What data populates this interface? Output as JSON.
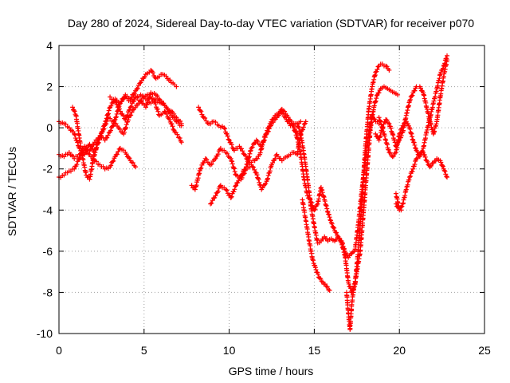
{
  "chart_data": {
    "type": "scatter",
    "title": "Day 280 of 2024, Sidereal Day-to-day VTEC variation (SDTVAR) for receiver p070",
    "xlabel": "GPS time / hours",
    "ylabel": "SDTVAR / TECUs",
    "xlim": [
      0,
      25
    ],
    "ylim": [
      -10,
      4
    ],
    "xticks": [
      0,
      5,
      10,
      15,
      20,
      25
    ],
    "yticks": [
      -10,
      -8,
      -6,
      -4,
      -2,
      0,
      2,
      4
    ],
    "grid": true,
    "marker": "+",
    "color": "#ff0000",
    "series": [
      {
        "x": [
          0.0,
          0.3,
          0.6,
          0.9,
          1.2,
          1.5,
          1.8,
          2.1,
          2.4,
          2.7,
          3.0,
          3.3,
          3.6,
          3.9,
          4.2,
          4.5,
          4.8,
          5.1,
          5.4,
          5.7,
          6.0,
          6.3,
          6.6,
          6.9
        ],
        "y": [
          0.3,
          0.2,
          0.0,
          -0.3,
          -1.0,
          -1.3,
          -0.8,
          -1.2,
          -0.5,
          0.2,
          1.0,
          1.4,
          1.2,
          1.6,
          1.4,
          1.8,
          2.2,
          2.6,
          2.8,
          2.4,
          2.6,
          2.5,
          2.2,
          2.0
        ]
      },
      {
        "x": [
          0.0,
          0.3,
          0.6,
          0.9,
          1.2,
          1.5,
          1.8,
          2.1,
          2.4,
          2.7,
          3.0,
          3.3,
          3.6,
          3.9,
          4.2,
          4.5,
          4.8,
          5.1,
          5.4,
          5.7,
          6.0,
          6.3,
          6.6,
          6.9,
          7.2
        ],
        "y": [
          -1.3,
          -1.4,
          -1.2,
          -1.5,
          -1.3,
          -0.9,
          -1.1,
          -0.7,
          -0.4,
          -0.6,
          -0.2,
          0.4,
          1.2,
          1.5,
          1.3,
          1.5,
          1.6,
          1.4,
          1.2,
          1.4,
          1.2,
          1.0,
          0.8,
          0.5,
          0.2
        ]
      },
      {
        "x": [
          0.0,
          0.3,
          0.6,
          0.9,
          1.2,
          1.5,
          1.8,
          2.1,
          2.4,
          2.7,
          3.0,
          3.3,
          3.6,
          3.9,
          4.2,
          4.5
        ],
        "y": [
          -2.4,
          -2.3,
          -2.1,
          -2.0,
          -1.5,
          -1.0,
          -1.3,
          -1.6,
          -1.8,
          -2.0,
          -1.9,
          -1.4,
          -1.0,
          -1.2,
          -1.6,
          -1.9
        ]
      },
      {
        "x": [
          0.8,
          1.0,
          1.2,
          1.4,
          1.6,
          1.8,
          2.0,
          2.3,
          2.6,
          2.9,
          3.2,
          3.5,
          3.8,
          4.1,
          4.4,
          4.7,
          5.0,
          5.3,
          5.6,
          5.9,
          6.2,
          6.5,
          6.8,
          7.1,
          7.2
        ],
        "y": [
          1.0,
          0.6,
          -0.5,
          -1.5,
          -2.3,
          -2.5,
          -1.6,
          -0.6,
          -0.1,
          0.5,
          0.3,
          0.0,
          -0.3,
          0.5,
          0.9,
          1.2,
          1.5,
          1.6,
          1.3,
          0.6,
          0.8,
          0.4,
          -0.2,
          -0.5,
          -0.7
        ]
      },
      {
        "x": [
          3.0,
          3.3,
          3.6,
          3.9,
          4.2,
          4.5,
          4.8,
          5.1,
          5.4,
          5.7,
          6.0,
          6.3,
          6.6,
          6.9,
          7.2
        ],
        "y": [
          1.5,
          1.3,
          0.8,
          0.4,
          1.0,
          1.5,
          1.3,
          1.0,
          1.7,
          1.6,
          1.3,
          1.0,
          0.6,
          0.3,
          0.1
        ]
      },
      {
        "x": [
          7.8,
          8.0,
          8.3,
          8.6,
          8.9,
          9.2,
          9.5,
          9.8,
          10.1,
          10.4,
          10.7,
          11.0,
          11.3,
          11.6,
          11.9,
          12.2,
          12.5,
          12.8,
          13.1,
          13.4,
          13.7,
          14.0,
          14.2,
          14.5
        ],
        "y": [
          -2.8,
          -3.0,
          -2.0,
          -1.5,
          -1.8,
          -1.5,
          -1.0,
          -1.2,
          -1.5,
          -2.3,
          -2.5,
          -2.0,
          -1.8,
          -2.2,
          -3.0,
          -2.6,
          -1.8,
          -1.3,
          -1.6,
          -1.4,
          -1.2,
          -1.3,
          -0.3,
          0.3
        ]
      },
      {
        "x": [
          8.2,
          8.5,
          8.8,
          9.1,
          9.4,
          9.7,
          10.0,
          10.3,
          10.6,
          10.9,
          11.2,
          11.5,
          11.8,
          12.1,
          12.4,
          12.7,
          13.0,
          13.3,
          13.6,
          13.9,
          14.2
        ],
        "y": [
          1.0,
          0.5,
          0.2,
          0.3,
          0.1,
          0.0,
          -0.6,
          -1.1,
          -0.9,
          -1.3,
          -1.7,
          -1.6,
          -1.3,
          -0.4,
          0.2,
          0.6,
          0.8,
          0.5,
          0.1,
          0.2,
          0.3
        ]
      },
      {
        "x": [
          8.9,
          9.2,
          9.5,
          9.8,
          10.1,
          10.4,
          10.7,
          11.0,
          11.3,
          11.6,
          11.9,
          12.2,
          12.5,
          12.8,
          13.1,
          13.4,
          13.7,
          14.0
        ],
        "y": [
          -3.7,
          -3.3,
          -2.8,
          -3.0,
          -3.4,
          -2.8,
          -2.3,
          -1.9,
          -1.0,
          -0.6,
          -0.9,
          -0.3,
          0.2,
          0.5,
          0.9,
          0.6,
          0.2,
          -0.3
        ]
      },
      {
        "x": [
          13.8,
          14.0,
          14.2,
          14.4,
          14.6,
          14.8,
          15.0,
          15.2,
          15.4,
          15.6,
          15.8,
          16.0,
          16.2,
          16.4,
          16.6,
          16.8,
          17.0,
          17.2,
          17.4,
          17.6,
          17.8,
          18.0,
          18.2,
          18.4,
          18.6,
          18.8
        ],
        "y": [
          0.0,
          -0.5,
          -1.3,
          -2.5,
          -3.3,
          -3.6,
          -4.0,
          -3.7,
          -2.9,
          -3.5,
          -4.1,
          -4.6,
          -5.0,
          -5.3,
          -5.5,
          -6.0,
          -6.3,
          -6.1,
          -5.9,
          -4.6,
          -3.0,
          -1.6,
          -0.3,
          0.6,
          0.3,
          0.2
        ]
      },
      {
        "x": [
          14.0,
          14.2,
          14.4,
          14.6,
          14.8,
          15.0,
          15.2,
          15.4,
          15.6,
          15.8,
          16.0,
          16.2,
          16.4,
          16.6,
          16.8,
          17.0,
          17.2,
          17.4,
          17.6,
          17.8,
          18.0,
          18.2,
          18.4,
          18.6,
          18.8,
          19.0,
          19.2,
          19.4
        ],
        "y": [
          0.2,
          -0.3,
          -1.3,
          -2.5,
          -3.8,
          -4.8,
          -5.6,
          -5.5,
          -5.3,
          -5.5,
          -5.4,
          -5.5,
          -5.3,
          -5.6,
          -6.2,
          -7.5,
          -8.0,
          -7.6,
          -5.8,
          -3.5,
          -1.0,
          0.9,
          2.0,
          2.7,
          3.0,
          3.1,
          3.0,
          2.8
        ]
      },
      {
        "x": [
          14.3,
          14.5,
          14.7,
          14.9,
          15.1,
          15.3,
          15.5,
          15.7,
          15.9
        ],
        "y": [
          -3.5,
          -4.5,
          -5.5,
          -6.4,
          -6.9,
          -7.3,
          -7.5,
          -7.7,
          -7.9
        ]
      },
      {
        "x": [
          16.9,
          17.0,
          17.1,
          17.2,
          17.3,
          17.5,
          17.7,
          17.9,
          18.1,
          18.3,
          18.5,
          18.7,
          18.9,
          19.1,
          19.3,
          19.5,
          19.7,
          19.9
        ],
        "y": [
          -8.0,
          -9.0,
          -9.8,
          -8.6,
          -7.9,
          -7.0,
          -6.0,
          -4.0,
          -2.0,
          0.0,
          1.0,
          1.6,
          1.9,
          2.0,
          1.9,
          1.8,
          1.7,
          1.6
        ]
      },
      {
        "x": [
          18.6,
          18.8,
          19.0,
          19.2,
          19.4,
          19.6,
          19.8,
          20.0,
          20.2,
          20.4,
          20.6,
          20.8,
          21.0,
          21.2,
          21.4,
          21.6,
          21.8,
          22.0,
          22.2,
          22.4,
          22.6,
          22.8
        ],
        "y": [
          -0.3,
          -0.6,
          0.0,
          0.4,
          0.2,
          -0.3,
          -0.9,
          -0.6,
          -0.2,
          0.6,
          1.3,
          1.7,
          2.0,
          2.0,
          1.7,
          1.0,
          0.3,
          -0.3,
          0.3,
          1.5,
          2.5,
          3.3
        ]
      },
      {
        "x": [
          18.8,
          19.0,
          19.2,
          19.4,
          19.6,
          19.8,
          20.0,
          20.2,
          20.4,
          20.6,
          20.8,
          21.0,
          21.2,
          21.4,
          21.6,
          21.8,
          22.0,
          22.2,
          22.4,
          22.6,
          22.8
        ],
        "y": [
          0.5,
          0.0,
          -0.6,
          -1.2,
          -1.4,
          -1.2,
          -0.3,
          0.1,
          0.3,
          0.0,
          -0.6,
          -1.1,
          -1.4,
          -1.0,
          -0.2,
          0.5,
          1.2,
          1.9,
          2.6,
          3.0,
          3.5
        ]
      },
      {
        "x": [
          19.8,
          20.0,
          20.2,
          20.4,
          20.6,
          20.8,
          21.0,
          21.2,
          21.4,
          21.6,
          21.8,
          22.0,
          22.2,
          22.4,
          22.6,
          22.8
        ],
        "y": [
          -3.7,
          -4.0,
          -3.7,
          -3.0,
          -2.4,
          -2.0,
          -1.5,
          -1.3,
          -1.2,
          -1.6,
          -1.9,
          -1.7,
          -1.5,
          -1.6,
          -2.0,
          -2.4
        ]
      },
      {
        "x": [
          19.8,
          19.9,
          20.0,
          20.1
        ],
        "y": [
          -3.2,
          -3.6,
          -3.9,
          -4.0
        ]
      }
    ]
  }
}
